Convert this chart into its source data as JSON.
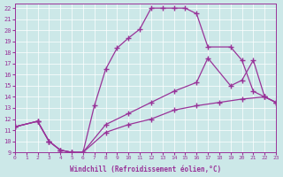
{
  "bg_color": "#cce8e8",
  "line_color": "#993399",
  "xlim": [
    0,
    23
  ],
  "ylim": [
    9,
    22.4
  ],
  "xticks": [
    0,
    1,
    2,
    3,
    4,
    5,
    6,
    7,
    8,
    9,
    10,
    11,
    12,
    13,
    14,
    15,
    16,
    17,
    18,
    19,
    20,
    21,
    22,
    23
  ],
  "yticks": [
    9,
    10,
    11,
    12,
    13,
    14,
    15,
    16,
    17,
    18,
    19,
    20,
    21,
    22
  ],
  "line1_x": [
    0,
    2,
    3,
    4,
    5,
    6,
    7,
    8,
    9,
    10,
    11,
    12,
    13,
    14,
    15,
    16,
    17,
    19,
    20,
    21,
    22,
    23
  ],
  "line1_y": [
    11.3,
    11.8,
    10.0,
    9.2,
    9.0,
    9.0,
    13.2,
    16.5,
    18.4,
    19.3,
    20.1,
    22.0,
    22.0,
    22.0,
    22.0,
    21.5,
    18.5,
    18.5,
    17.3,
    14.5,
    14.0,
    13.5
  ],
  "line2_x": [
    0,
    2,
    3,
    4,
    5,
    6,
    8,
    10,
    12,
    14,
    16,
    17,
    19,
    20,
    21,
    22,
    23
  ],
  "line2_y": [
    11.3,
    11.8,
    10.0,
    9.2,
    9.0,
    9.0,
    11.5,
    12.5,
    13.5,
    14.5,
    15.3,
    17.5,
    15.0,
    15.5,
    17.3,
    14.0,
    13.5
  ],
  "line3_x": [
    0,
    2,
    3,
    4,
    5,
    6,
    8,
    10,
    12,
    14,
    16,
    18,
    20,
    22,
    23
  ],
  "line3_y": [
    11.3,
    11.8,
    10.0,
    9.2,
    9.0,
    9.0,
    10.8,
    11.5,
    12.0,
    12.8,
    13.2,
    13.5,
    13.8,
    14.0,
    13.5
  ],
  "xlabel": "Windchill (Refroidissement éolien,°C)"
}
